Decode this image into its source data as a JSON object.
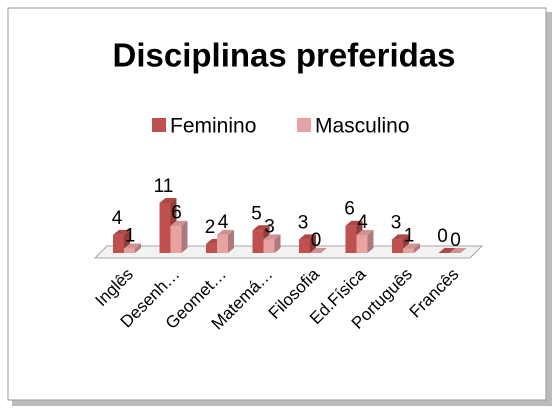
{
  "chart_data": {
    "type": "bar3d",
    "title": "Disciplinas preferidas",
    "categories": [
      "Inglês",
      "Desenh…",
      "Geomet…",
      "Matemá…",
      "Filosofia",
      "Ed.Física",
      "Português",
      "Francês"
    ],
    "series": [
      {
        "name": "Feminino",
        "color": "#c0504d",
        "values": [
          4,
          11,
          2,
          5,
          3,
          6,
          3,
          0
        ]
      },
      {
        "name": "Masculino",
        "color": "#e6a3a1",
        "values": [
          1,
          6,
          4,
          3,
          0,
          4,
          1,
          0
        ]
      }
    ]
  }
}
